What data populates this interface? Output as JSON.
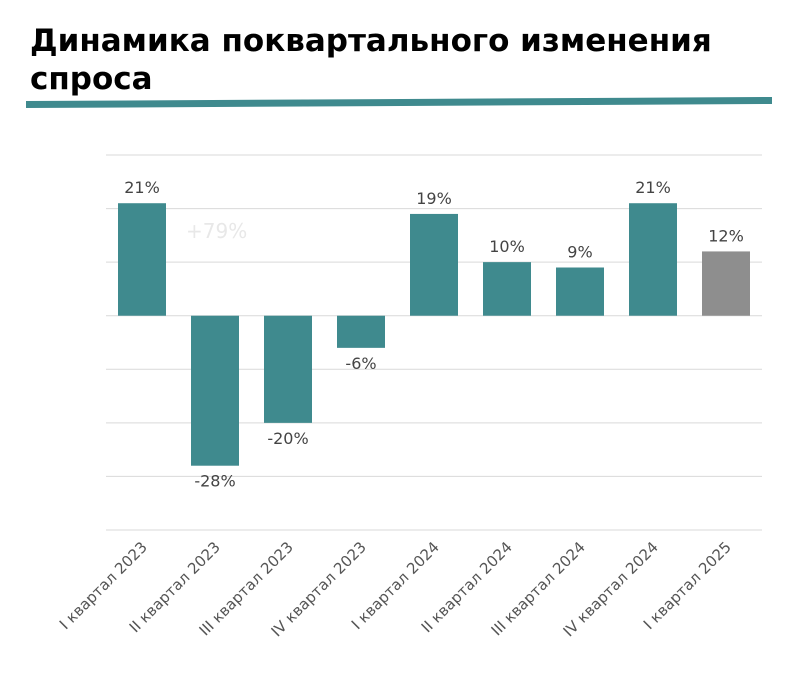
{
  "title": "Динамика поквартального изменения спроса",
  "colors": {
    "bar": "#3f8a8e",
    "bar_highlight": "#8e8e8e",
    "rule": "#3f8a8e",
    "grid": "#d9d9d9"
  },
  "chart_data": {
    "type": "bar",
    "categories": [
      "I квартал 2023",
      "II квартал 2023",
      "III квартал 2023",
      "IV квартал 2023",
      "I квартал 2024",
      "II квартал 2024",
      "III квартал 2024",
      "IV квартал 2024",
      "I квартал 2025"
    ],
    "values": [
      21,
      -28,
      -20,
      -6,
      19,
      10,
      9,
      21,
      12
    ],
    "value_labels": [
      "21%",
      "-28%",
      "-20%",
      "-6%",
      "19%",
      "10%",
      "9%",
      "21%",
      "12%"
    ],
    "highlight_index": 8,
    "ylim": [
      -40,
      30
    ],
    "grid": true,
    "annotation": "+79%",
    "xlabel": "",
    "ylabel": ""
  }
}
